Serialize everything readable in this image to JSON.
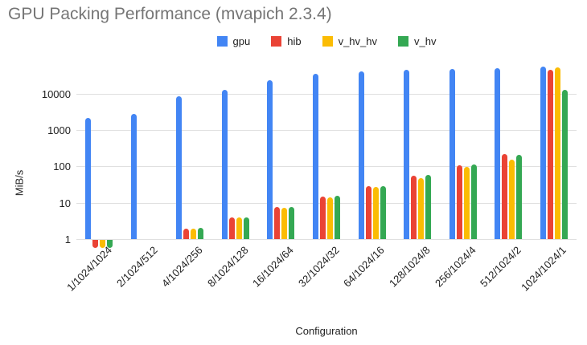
{
  "chart_data": {
    "type": "bar",
    "title": "GPU Packing Performance (mvapich 2.3.4)",
    "xlabel": "Configuration",
    "ylabel": "MiB/s",
    "y_scale": "log",
    "y_ticks": [
      1,
      10,
      100,
      1000,
      10000
    ],
    "ylim": [
      0.5,
      90000
    ],
    "grid": true,
    "legend_position": "top",
    "categories": [
      "1/1024/1024",
      "2/1024/512",
      "4/1024/256",
      "8/1024/128",
      "16/1024/64",
      "32/1024/32",
      "64/1024/16",
      "128/1024/8",
      "256/1024/4",
      "512/1024/2",
      "1024/1024/1"
    ],
    "series": [
      {
        "name": "gpu",
        "color": "#4285F4",
        "values": [
          2200,
          2800,
          8500,
          13000,
          24000,
          35000,
          42000,
          45000,
          48000,
          50000,
          55000
        ]
      },
      {
        "name": "hib",
        "color": "#EA4335",
        "values": [
          0.6,
          null,
          1.9,
          4.0,
          7.5,
          15,
          28,
          55,
          110,
          215,
          45000
        ]
      },
      {
        "name": "v_hv_hv",
        "color": "#FBBC04",
        "values": [
          0.6,
          null,
          1.9,
          3.9,
          7.2,
          14,
          27,
          48,
          95,
          150,
          53000
        ]
      },
      {
        "name": "v_hv",
        "color": "#34A853",
        "values": [
          0.6,
          null,
          2.0,
          4.0,
          7.7,
          15.5,
          29,
          57,
          115,
          210,
          13000
        ]
      }
    ]
  }
}
